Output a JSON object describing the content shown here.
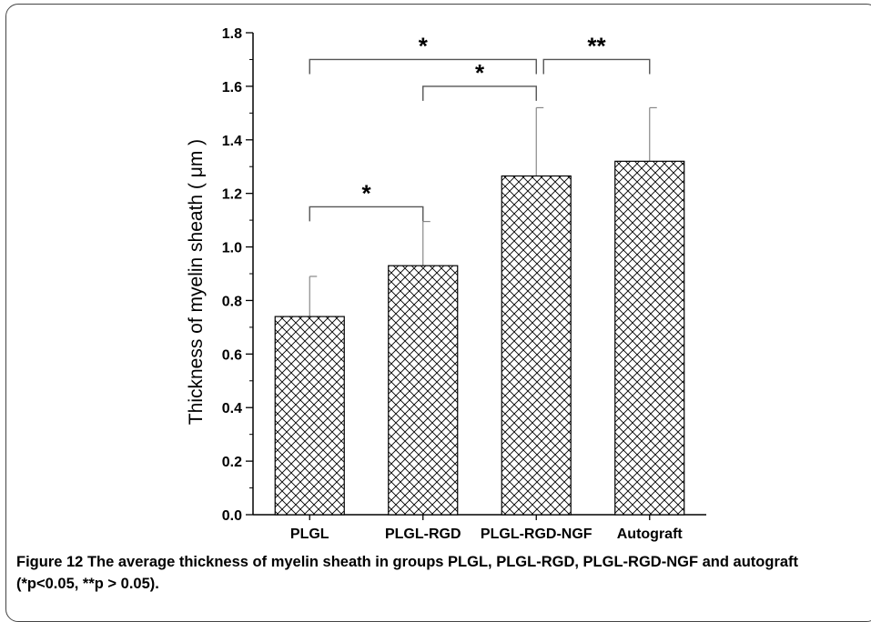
{
  "chart_data": {
    "type": "bar",
    "title": "",
    "xlabel": "",
    "ylabel": "Thickness of myelin sheath ( μm )",
    "categories": [
      "PLGL",
      "PLGL-RGD",
      "PLGL-RGD-NGF",
      "Autograft"
    ],
    "values": [
      0.74,
      0.93,
      1.265,
      1.32
    ],
    "error_bars": [
      0.15,
      0.165,
      0.255,
      0.2
    ],
    "ylim": [
      0.0,
      1.8
    ],
    "yticks": [
      "0.0",
      "0.2",
      "0.4",
      "0.6",
      "0.8",
      "1.0",
      "1.2",
      "1.4",
      "1.6",
      "1.8"
    ],
    "bar_fill": "crosshatch",
    "grid": false,
    "significance": [
      {
        "from": "PLGL",
        "to": "PLGL-RGD",
        "label": "*",
        "level": 1.15
      },
      {
        "from": "PLGL-RGD",
        "to": "PLGL-RGD-NGF",
        "label": "*",
        "level": 1.6
      },
      {
        "from": "PLGL",
        "to": "PLGL-RGD-NGF",
        "label": "*",
        "level": 1.7
      },
      {
        "from": "PLGL-RGD-NGF",
        "to": "Autograft",
        "label": "**",
        "level": 1.7
      }
    ]
  },
  "caption": {
    "label": "Figure 12",
    "text": " The average thickness of myelin sheath in groups PLGL, PLGL-RGD, PLGL-RGD-NGF and autograft (*p<0.05, **p > 0.05)."
  }
}
